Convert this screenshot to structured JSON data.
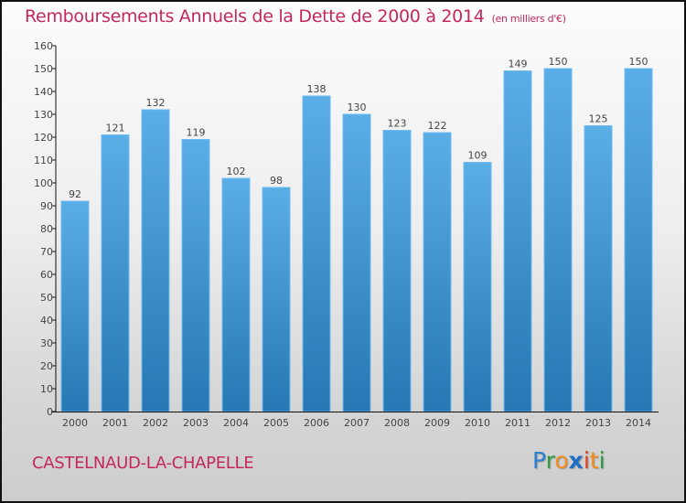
{
  "chart_data": {
    "type": "bar",
    "title": "Remboursements Annuels de la Dette de 2000 à 2014",
    "subtitle": "(en milliers d'€)",
    "xlabel": "",
    "ylabel": "",
    "categories": [
      "2000",
      "2001",
      "2002",
      "2003",
      "2004",
      "2005",
      "2006",
      "2007",
      "2008",
      "2009",
      "2010",
      "2011",
      "2012",
      "2013",
      "2014"
    ],
    "values": [
      92,
      121,
      132,
      119,
      102,
      98,
      138,
      130,
      123,
      122,
      109,
      149,
      150,
      125,
      150
    ],
    "ylim": [
      0,
      160
    ],
    "yticks": [
      0,
      10,
      20,
      30,
      40,
      50,
      60,
      70,
      80,
      90,
      100,
      110,
      120,
      130,
      140,
      150,
      160
    ],
    "grid": false,
    "data_labels": true,
    "bar_color_top": "#5aaee6",
    "bar_color_bottom": "#2677b3"
  },
  "footer": {
    "commune": "CASTELNAUD-LA-CHAPELLE",
    "logo": {
      "letters": [
        {
          "ch": "P",
          "color": "#2a7fcf"
        },
        {
          "ch": "r",
          "color": "#2e9b3f"
        },
        {
          "ch": "o",
          "color": "#f28c1c"
        },
        {
          "ch": "x",
          "color": "#1f6fc4"
        },
        {
          "ch": "i",
          "color": "#e2411e"
        },
        {
          "ch": "t",
          "color": "#f28c1c"
        },
        {
          "ch": "i",
          "color": "#2e9b3f"
        }
      ]
    }
  },
  "colors": {
    "title": "#c4275e",
    "axis": "#111111",
    "text": "#444444"
  }
}
